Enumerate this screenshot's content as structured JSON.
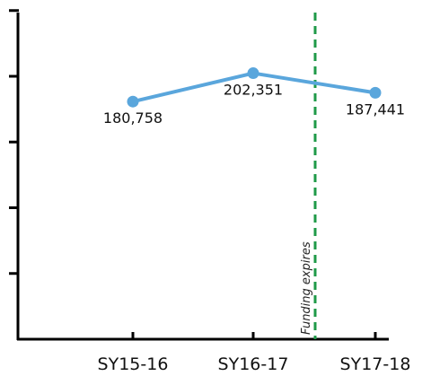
{
  "chart_data": {
    "type": "line",
    "categories": [
      "SY15-16",
      "SY16-17",
      "SY17-18"
    ],
    "series": [
      {
        "values": [
          180758,
          202351,
          187441
        ]
      }
    ],
    "data_labels": [
      "180,758",
      "202,351",
      "187,441"
    ],
    "y_tick_count": 5,
    "ylim": [
      0,
      250000
    ],
    "reference_line": {
      "label": "Funding expires",
      "position_between": [
        "SY16-17",
        "SY17-18"
      ],
      "style": "dashed"
    },
    "colors": {
      "series": "#5aa6dc",
      "reference": "#1f9a48",
      "axis": "#000000"
    },
    "grid": false
  }
}
